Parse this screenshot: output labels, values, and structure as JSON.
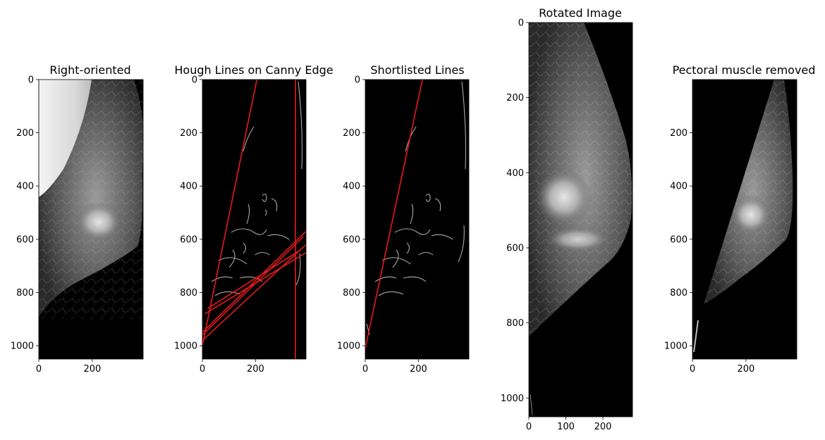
{
  "figure": {
    "background": "#ffffff",
    "line_color": "#e8191b",
    "edge_color": "#a9a9a9"
  },
  "chart_data": [
    {
      "type": "image",
      "title": "Right-oriented",
      "xlim": [
        0,
        390
      ],
      "ylim": [
        1050,
        0
      ],
      "xticks": [
        0,
        200
      ],
      "yticks": [
        0,
        200,
        400,
        600,
        800,
        1000
      ]
    },
    {
      "type": "image",
      "title": "Hough Lines on Canny Edge",
      "xlim": [
        0,
        390
      ],
      "ylim": [
        1050,
        0
      ],
      "xticks": [
        0,
        200
      ],
      "yticks": [
        0,
        200,
        400,
        600,
        800,
        1000
      ],
      "lines": [
        {
          "x1": 205,
          "y1": 0,
          "x2": 0,
          "y2": 1000
        },
        {
          "x1": 350,
          "y1": 0,
          "x2": 350,
          "y2": 1050
        },
        {
          "x1": 0,
          "y1": 950,
          "x2": 390,
          "y2": 570
        },
        {
          "x1": 0,
          "y1": 980,
          "x2": 390,
          "y2": 620
        },
        {
          "x1": 10,
          "y1": 880,
          "x2": 390,
          "y2": 650
        },
        {
          "x1": 0,
          "y1": 960,
          "x2": 380,
          "y2": 590
        },
        {
          "x1": 20,
          "y1": 860,
          "x2": 370,
          "y2": 640
        }
      ]
    },
    {
      "type": "image",
      "title": "Shortlisted Lines",
      "xlim": [
        0,
        390
      ],
      "ylim": [
        1050,
        0
      ],
      "xticks": [
        0,
        200
      ],
      "yticks": [
        0,
        200,
        400,
        600,
        800,
        1000
      ],
      "lines": [
        {
          "x1": 215,
          "y1": 0,
          "x2": 0,
          "y2": 1010
        }
      ]
    },
    {
      "type": "image",
      "title": "Rotated Image",
      "xlim": [
        0,
        280
      ],
      "ylim": [
        1050,
        0
      ],
      "xticks": [
        0,
        100,
        200
      ],
      "yticks": [
        0,
        200,
        400,
        600,
        800,
        1000
      ]
    },
    {
      "type": "image",
      "title": "Pectoral muscle removed",
      "xlim": [
        0,
        390
      ],
      "ylim": [
        1050,
        0
      ],
      "xticks": [
        0,
        200
      ],
      "yticks": [
        200,
        400,
        600,
        800,
        1000
      ]
    }
  ]
}
